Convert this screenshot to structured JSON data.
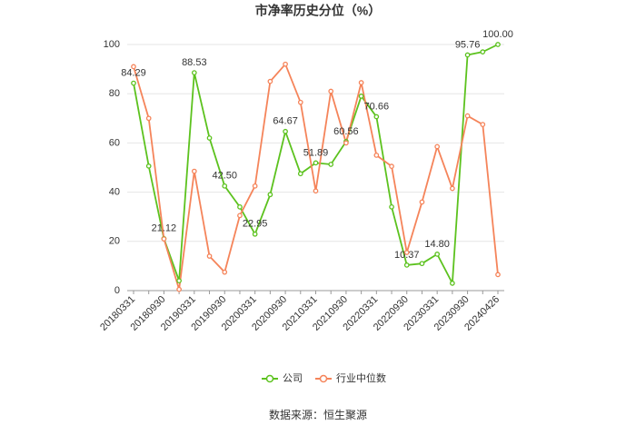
{
  "chart_data": {
    "type": "line",
    "title": "市净率历史分位（%）",
    "source": "数据来源：恒生聚源",
    "categories": [
      "20180331",
      null,
      "20180930",
      null,
      "20190331",
      null,
      "20190930",
      null,
      "20200331",
      null,
      "20200930",
      null,
      "20210331",
      null,
      "20210930",
      null,
      "20220331",
      null,
      "20220930",
      null,
      "20230331",
      null,
      "20230930",
      null,
      "20240426"
    ],
    "series": [
      {
        "name": "公司",
        "color": "#5cc21e",
        "values": [
          84.29,
          50.6,
          21.12,
          4,
          88.53,
          62,
          42.5,
          34,
          22.95,
          39,
          64.67,
          47.5,
          51.89,
          51.3,
          60.56,
          79,
          70.66,
          34,
          10.37,
          11,
          14.8,
          3,
          95.76,
          97,
          100.0
        ],
        "value_labels": [
          "84.29",
          null,
          "21.12",
          null,
          "88.53",
          null,
          "42.50",
          null,
          "22.95",
          null,
          "64.67",
          null,
          "51.89",
          null,
          "60.56",
          null,
          "70.66",
          null,
          "10.37",
          null,
          "14.80",
          null,
          "95.76",
          null,
          "100.00"
        ]
      },
      {
        "name": "行业中位数",
        "color": "#f5845a",
        "values": [
          91,
          70,
          21,
          0.5,
          48.5,
          14,
          7.5,
          30.5,
          42.5,
          85,
          92,
          76.5,
          40.5,
          81,
          60,
          84.5,
          55,
          50.5,
          15.5,
          36,
          58.5,
          41.5,
          71,
          67.5,
          6.5
        ]
      }
    ],
    "ylim": [
      0,
      100
    ],
    "yticks": [
      0,
      20,
      40,
      60,
      80,
      100
    ],
    "grid": true,
    "legend": "bottom"
  }
}
